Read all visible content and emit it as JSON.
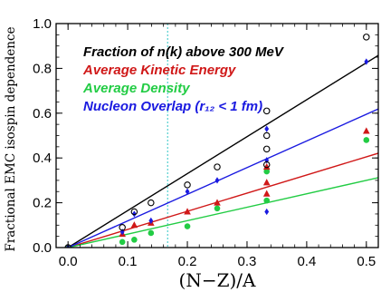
{
  "chart_data": {
    "type": "scatter",
    "xlabel": "(N−Z)/A",
    "ylabel": "Fractional EMC isospin dependence",
    "xlim": [
      -0.02,
      0.52
    ],
    "ylim": [
      0,
      1.0
    ],
    "xticks": [
      "0.0",
      "0.1",
      "0.2",
      "0.3",
      "0.4",
      "0.5"
    ],
    "yticks": [
      "0.0",
      "0.2",
      "0.4",
      "0.6",
      "0.8",
      "1.0"
    ],
    "xtick_values": [
      0,
      0.1,
      0.2,
      0.3,
      0.4,
      0.5
    ],
    "ytick_values": [
      0,
      0.2,
      0.4,
      0.6,
      0.8,
      1.0
    ],
    "grid": false,
    "legend_placement": "top-left",
    "vertical_reference_line": {
      "x": 0.167,
      "color": "#5fd3d3",
      "style": "dashed"
    },
    "series": [
      {
        "name": "Fraction of n(k) above 300 MeV",
        "color": "#000000",
        "marker": "open-circle",
        "fit_slope": 1.65,
        "points": [
          [
            0,
            0
          ],
          [
            0.091,
            0.09
          ],
          [
            0.111,
            0.16
          ],
          [
            0.139,
            0.2
          ],
          [
            0.2,
            0.28
          ],
          [
            0.25,
            0.36
          ],
          [
            0.333,
            0.61
          ],
          [
            0.333,
            0.5
          ],
          [
            0.333,
            0.44
          ],
          [
            0.333,
            0.37
          ],
          [
            0.5,
            0.94
          ]
        ]
      },
      {
        "name": "Average Kinetic Energy",
        "color": "#d01818",
        "marker": "triangle",
        "fit_slope": 0.81,
        "points": [
          [
            0,
            0
          ],
          [
            0.091,
            0.06
          ],
          [
            0.111,
            0.1
          ],
          [
            0.139,
            0.11
          ],
          [
            0.2,
            0.16
          ],
          [
            0.25,
            0.2
          ],
          [
            0.333,
            0.36
          ],
          [
            0.333,
            0.29
          ],
          [
            0.333,
            0.24
          ],
          [
            0.5,
            0.52
          ]
        ]
      },
      {
        "name": "Average Density",
        "color": "#22cc44",
        "marker": "filled-circle",
        "fit_slope": 0.6,
        "points": [
          [
            0,
            0
          ],
          [
            0.091,
            0.025
          ],
          [
            0.111,
            0.035
          ],
          [
            0.139,
            0.065
          ],
          [
            0.2,
            0.095
          ],
          [
            0.25,
            0.175
          ],
          [
            0.333,
            0.34
          ],
          [
            0.333,
            0.21
          ],
          [
            0.5,
            0.48
          ]
        ]
      },
      {
        "name": "Nucleon Overlap (r₁₂ < 1 fm)",
        "color": "#1a1ae0",
        "marker": "diamond",
        "fit_slope": 1.19,
        "points": [
          [
            0,
            0
          ],
          [
            0.091,
            0.07
          ],
          [
            0.111,
            0.15
          ],
          [
            0.139,
            0.12
          ],
          [
            0.2,
            0.25
          ],
          [
            0.25,
            0.3
          ],
          [
            0.333,
            0.53
          ],
          [
            0.333,
            0.39
          ],
          [
            0.333,
            0.16
          ],
          [
            0.5,
            0.83
          ]
        ]
      }
    ]
  }
}
